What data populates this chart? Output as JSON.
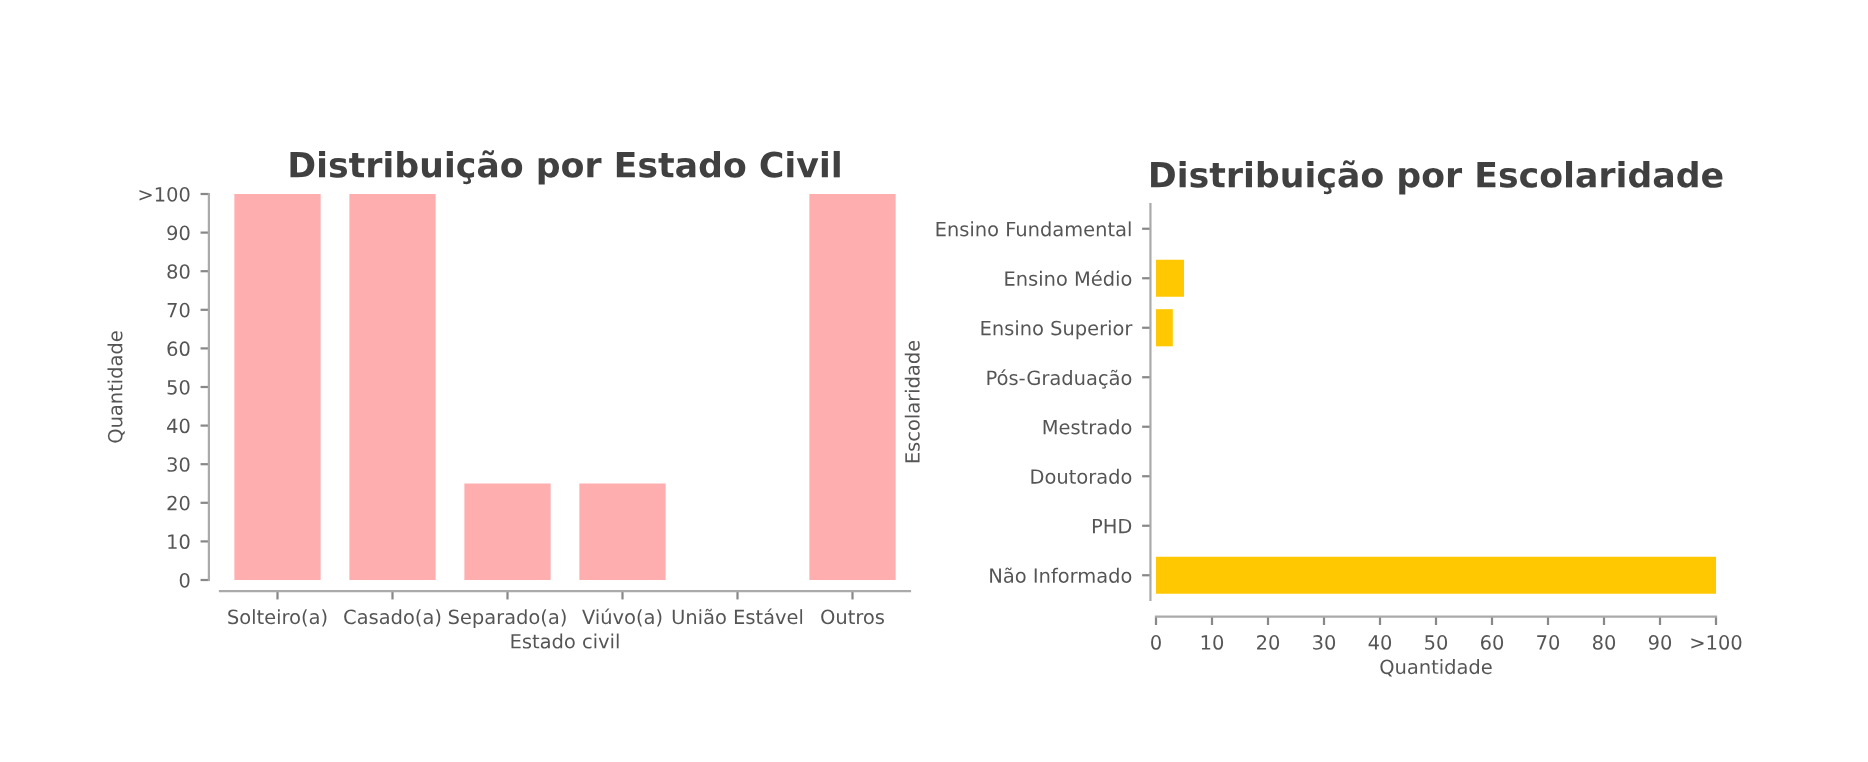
{
  "chart_data": [
    {
      "type": "bar",
      "title": "Distribuição por Estado Civil",
      "xlabel": "Estado civil",
      "ylabel": "Quantidade",
      "categories": [
        "Solteiro(a)",
        "Casado(a)",
        "Separado(a)",
        "Viúvo(a)",
        "União Estável",
        "Outros"
      ],
      "values": [
        100,
        100,
        25,
        25,
        0,
        100
      ],
      "color": "#ffaeb0",
      "ylim": [
        0,
        100
      ],
      "yticks": [
        0,
        10,
        20,
        30,
        40,
        50,
        60,
        70,
        80,
        90,
        {
          "value": 100,
          "label": ">100"
        }
      ],
      "grid": false,
      "legend": false
    },
    {
      "type": "bar",
      "orientation": "horizontal",
      "title": "Distribuição por Escolaridade",
      "xlabel": "Quantidade",
      "ylabel": "Escolaridade",
      "categories": [
        "Ensino Fundamental",
        "Ensino Médio",
        "Ensino Superior",
        "Pós-Graduação",
        "Mestrado",
        "Doutorado",
        "PHD",
        "Não Informado"
      ],
      "values": [
        0,
        5,
        3,
        0,
        0,
        0,
        0,
        100
      ],
      "color": "#ffc800",
      "xlim": [
        0,
        100
      ],
      "xticks": [
        0,
        10,
        20,
        30,
        40,
        50,
        60,
        70,
        80,
        90,
        {
          "value": 100,
          "label": ">100"
        }
      ],
      "grid": false,
      "legend": false
    }
  ]
}
